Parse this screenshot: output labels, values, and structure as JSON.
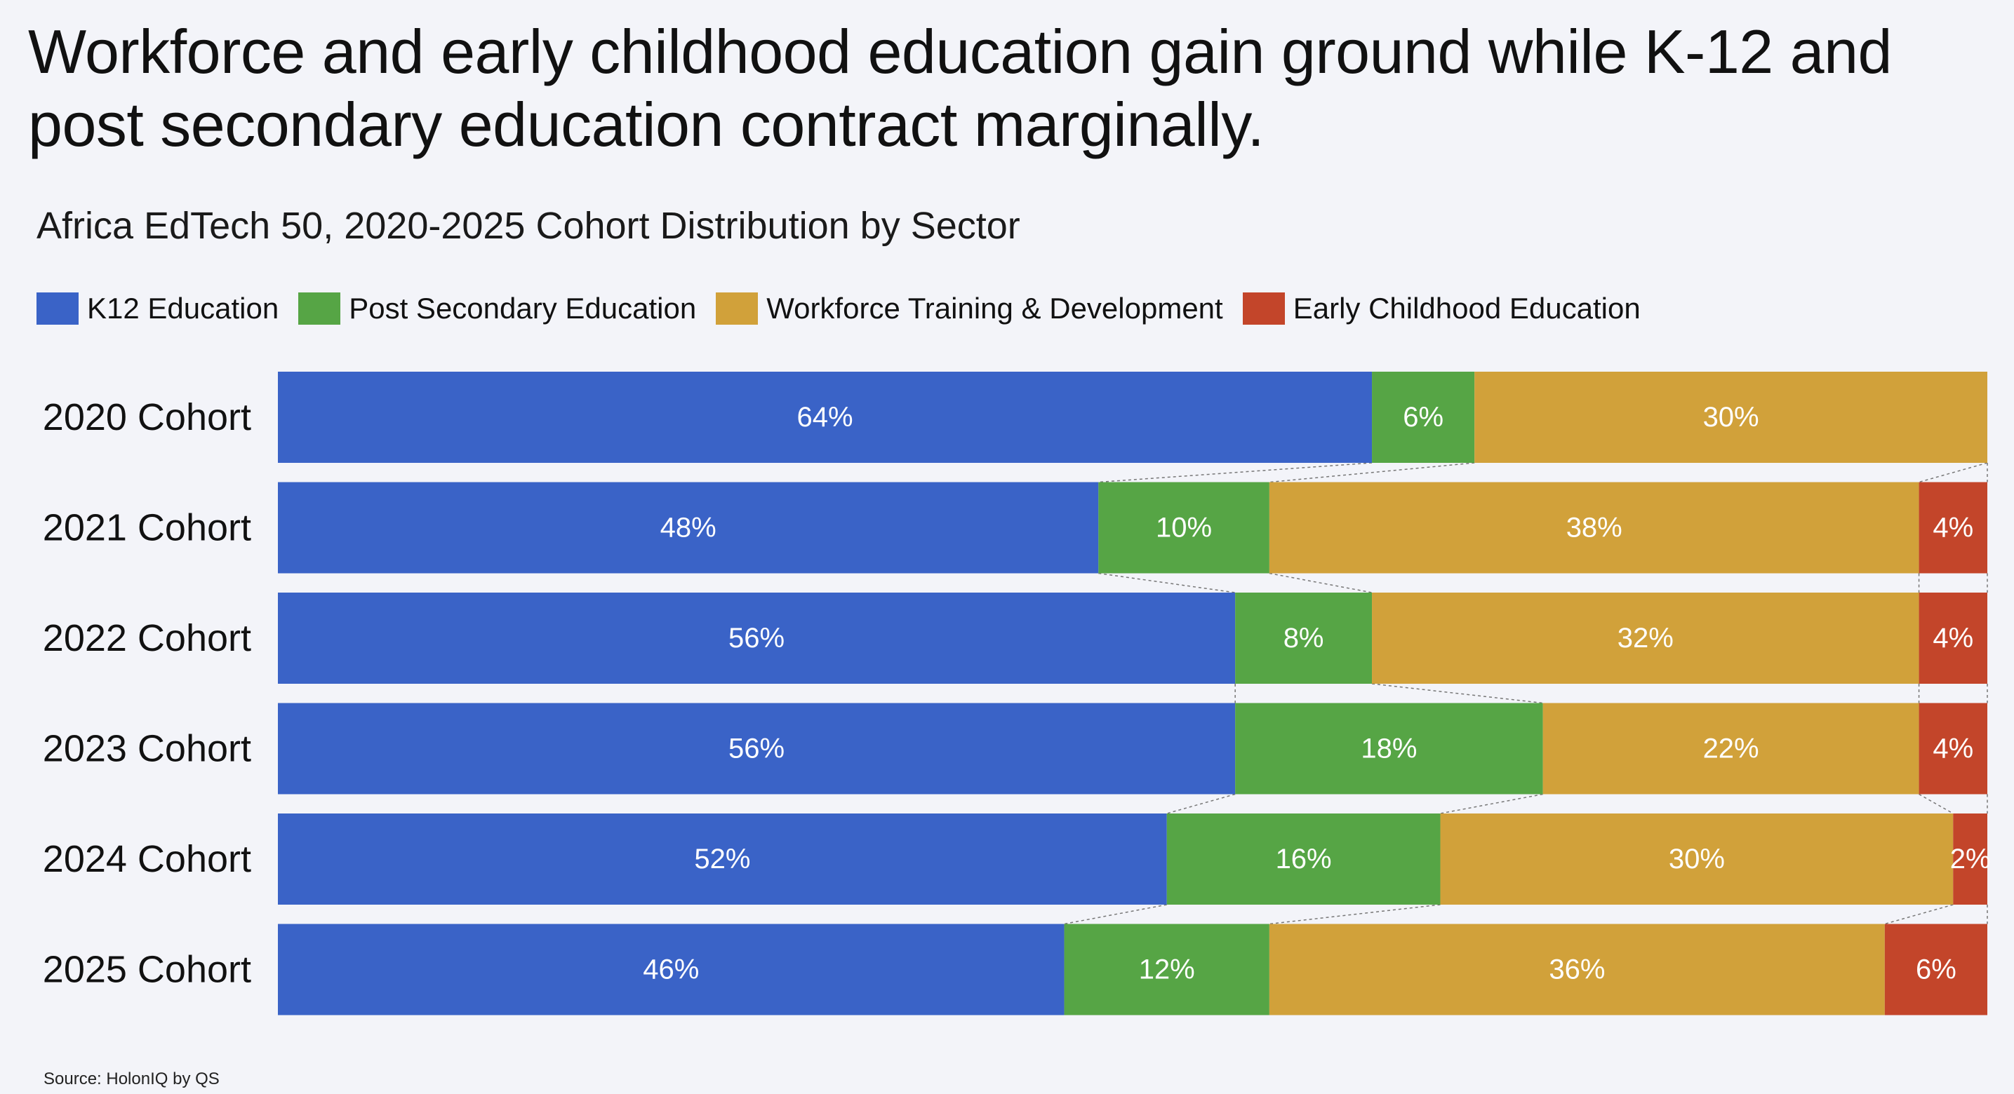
{
  "headline": "Workforce and early childhood education gain ground while K-12 and post secondary education contract marginally.",
  "source": "Source: HolonIQ by QS",
  "colors": {
    "k12": "#3a63c7",
    "post_secondary": "#56a545",
    "workforce": "#d1a13a",
    "early_childhood": "#c3452a",
    "connector": "#777777",
    "label_text": "#ffffff",
    "background": "#f3f4f9"
  },
  "chart_data": {
    "type": "bar",
    "orientation": "horizontal",
    "stacked": true,
    "normalized": true,
    "title": "Africa EdTech 50, 2020-2025 Cohort Distribution by Sector",
    "xlabel": "",
    "ylabel": "",
    "xlim": [
      0,
      100
    ],
    "legend_position": "top-left",
    "categories": [
      "2020 Cohort",
      "2021 Cohort",
      "2022 Cohort",
      "2023 Cohort",
      "2024 Cohort",
      "2025 Cohort"
    ],
    "series": [
      {
        "key": "k12",
        "name": "K12 Education",
        "values": [
          64,
          48,
          56,
          56,
          52,
          46
        ]
      },
      {
        "key": "post_secondary",
        "name": "Post Secondary Education",
        "values": [
          6,
          10,
          8,
          18,
          16,
          12
        ]
      },
      {
        "key": "workforce",
        "name": "Workforce Training & Development",
        "values": [
          30,
          38,
          32,
          22,
          30,
          36
        ]
      },
      {
        "key": "early_childhood",
        "name": "Early Childhood Education",
        "values": [
          0,
          4,
          4,
          4,
          2,
          6
        ]
      }
    ],
    "data_labels": [
      [
        "64%",
        "48%",
        "56%",
        "56%",
        "52%",
        "46%"
      ],
      [
        "6%",
        "10%",
        "8%",
        "18%",
        "16%",
        "12%"
      ],
      [
        "30%",
        "38%",
        "32%",
        "22%",
        "30%",
        "36%"
      ],
      [
        "",
        "4%",
        "4%",
        "4%",
        "2%",
        "6%"
      ]
    ]
  }
}
